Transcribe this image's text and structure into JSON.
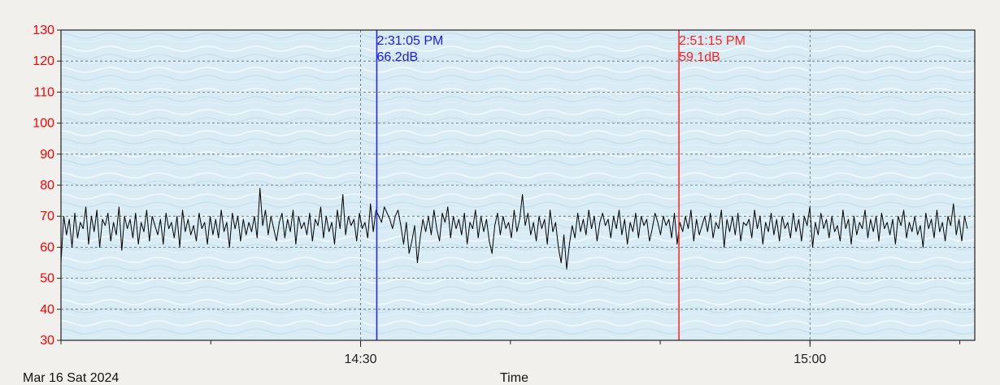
{
  "chart_data": {
    "type": "line",
    "title": "",
    "xlabel": "Time",
    "ylabel": "",
    "ylim": [
      30,
      130
    ],
    "yticks": [
      "30",
      "40",
      "50",
      "60",
      "70",
      "80",
      "90",
      "100",
      "110",
      "120",
      "130"
    ],
    "x_range_minutes": [
      14.1,
      15.12
    ],
    "xticks": [
      {
        "label": "14:30",
        "t": "14:30"
      },
      {
        "label": "15:00",
        "t": "15:00"
      }
    ],
    "grid": true,
    "date_label": "Mar 16 Sat 2024",
    "cursors": [
      {
        "time": "2:31:05 PM",
        "value": "66.2dB",
        "t": "14:31:05",
        "color": "#1a1aff"
      },
      {
        "time": "2:51:15 PM",
        "value": "59.1dB",
        "t": "14:51:15",
        "color": "#ff2020"
      }
    ],
    "series": [
      {
        "x_start": "14:10:00",
        "x_end": "15:10:30",
        "values": [
          55,
          70,
          64,
          69,
          60,
          71,
          63,
          68,
          66,
          73,
          61,
          70,
          65,
          72,
          60,
          69,
          67,
          71,
          62,
          68,
          64,
          73,
          59,
          70,
          66,
          69,
          63,
          71,
          61,
          68,
          65,
          72,
          62,
          70,
          67,
          64,
          69,
          61,
          71,
          66,
          68,
          63,
          70,
          60,
          72,
          65,
          69,
          64,
          67,
          62,
          71,
          66,
          68,
          61,
          70,
          64,
          69,
          63,
          72,
          65,
          68,
          60,
          71,
          66,
          70,
          62,
          69,
          64,
          68,
          65,
          70,
          63,
          79,
          67,
          72,
          64,
          70,
          66,
          62,
          68,
          71,
          63,
          69,
          65,
          72,
          61,
          70,
          66,
          68,
          64,
          71,
          62,
          69,
          67,
          73,
          63,
          70,
          65,
          68,
          61,
          72,
          66,
          77,
          64,
          70,
          67,
          69,
          62,
          71,
          66,
          68,
          63,
          74,
          65,
          72,
          70,
          68,
          73,
          71,
          69,
          66,
          70,
          72,
          67,
          61,
          68,
          58,
          62,
          67,
          55,
          63,
          69,
          65,
          70,
          64,
          72,
          66,
          62,
          71,
          68,
          73,
          63,
          70,
          66,
          69,
          64,
          71,
          61,
          68,
          66,
          72,
          63,
          70,
          65,
          69,
          62,
          58,
          67,
          71,
          64,
          70,
          66,
          68,
          63,
          72,
          65,
          69,
          77,
          67,
          71,
          64,
          68,
          62,
          70,
          66,
          69,
          61,
          72,
          65,
          68,
          60,
          55,
          64,
          53,
          61,
          67,
          63,
          71,
          65,
          69,
          64,
          72,
          66,
          70,
          62,
          68,
          71,
          67,
          69,
          63,
          70,
          66,
          72,
          64,
          69,
          61,
          68,
          65,
          71,
          63,
          70,
          67,
          69,
          62,
          66,
          71,
          68,
          64,
          70,
          67,
          69,
          63,
          71,
          61,
          68,
          65,
          70,
          66,
          72,
          62,
          69,
          64,
          67,
          70,
          65,
          71,
          63,
          68,
          66,
          72,
          60,
          69,
          65,
          70,
          64,
          71,
          62,
          68,
          67,
          69,
          63,
          72,
          66,
          70,
          61,
          68,
          65,
          71,
          64,
          69,
          62,
          70,
          66,
          68,
          63,
          71,
          65,
          69,
          62,
          70,
          67,
          73,
          60,
          68,
          64,
          71,
          66,
          69,
          63,
          70,
          65,
          67,
          62,
          72,
          66,
          69,
          61,
          70,
          64,
          68,
          66,
          72,
          63,
          69,
          65,
          70,
          62,
          71,
          66,
          68,
          64,
          69,
          61,
          70,
          67,
          72,
          63,
          68,
          65,
          70,
          64,
          67,
          60,
          71,
          66,
          69,
          63,
          72,
          65,
          68,
          62,
          70,
          67,
          74,
          64,
          69,
          62,
          70,
          66
        ]
      }
    ]
  }
}
